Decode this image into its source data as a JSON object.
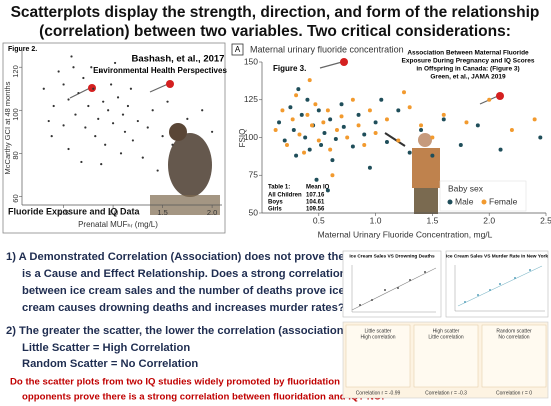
{
  "title": [
    "Scatterplots display the strength, direction, and form of the relationship",
    "(correlation) between two variables.  Two critical considerations:"
  ],
  "left_chart": {
    "type": "scatter",
    "figure_label": "Figure 2.",
    "citation": [
      "Bashash, et al., 2017",
      "Environmental Health Perspectives"
    ],
    "ylabel": "McCarthy GCI at 48 months",
    "xlabel": "Prenatal MUFₕᵣ (mg/L)",
    "caption": "Fluoride Exposure and IQ Data",
    "xlim": [
      0.08,
      2.1
    ],
    "ylim": [
      56,
      128
    ],
    "xticks": [
      0.5,
      {
        "value": 1,
        "label": "1.0"
      },
      1.5,
      {
        "value": 2,
        "label": "2.0"
      }
    ],
    "yticks": [
      60,
      80,
      100,
      120
    ],
    "color": "#333333",
    "x": [
      0.45,
      0.5,
      0.55,
      0.6,
      0.62,
      0.65,
      0.7,
      0.72,
      0.75,
      0.8,
      0.82,
      0.85,
      0.88,
      0.9,
      0.92,
      0.95,
      0.98,
      1.0,
      1.05,
      1.08,
      1.1,
      1.12,
      1.15,
      1.2,
      1.25,
      1.3,
      1.35,
      1.4,
      1.45,
      1.5,
      0.35,
      0.4,
      0.38,
      0.55,
      0.68,
      0.58,
      1.6,
      1.75,
      1.9,
      0.3,
      0.78,
      1.02,
      0.5,
      0.88,
      1.18,
      1.55,
      2.0
    ],
    "y": [
      118,
      112,
      105,
      120,
      98,
      108,
      115,
      92,
      102,
      110,
      88,
      96,
      118,
      104,
      84,
      100,
      112,
      94,
      106,
      80,
      98,
      90,
      102,
      86,
      95,
      78,
      92,
      100,
      72,
      88,
      95,
      102,
      88,
      82,
      76,
      125,
      84,
      96,
      100,
      110,
      120,
      122,
      93,
      75,
      110,
      104,
      90
    ]
  },
  "right_chart": {
    "type": "scatter",
    "panel_label": "A",
    "header": "Maternal urinary fluoride concentration",
    "figure_label": "Figure 3.",
    "title": [
      "Association Between Maternal Fluoride",
      "Exposure During Pregnancy and IQ Scores",
      "in Offspring in Canada: (Figure 3)",
      "Green, et al., JAMA 2019"
    ],
    "ylabel": "FSIQ",
    "xlabel": "Maternal Urinary Fluoride Concentration, mg/L",
    "xlim": [
      0,
      2.5
    ],
    "ylim": [
      50,
      150
    ],
    "xticks": [
      0.5,
      {
        "value": 1,
        "label": "1.0"
      },
      1.5,
      {
        "value": 2,
        "label": "2.0"
      },
      2.5
    ],
    "yticks": [
      50,
      75,
      100,
      125,
      150
    ],
    "legend_title": "Baby sex",
    "series": [
      {
        "name": "Male",
        "color": "#1f4e5a",
        "x": [
          0.15,
          0.2,
          0.25,
          0.28,
          0.3,
          0.35,
          0.38,
          0.4,
          0.42,
          0.45,
          0.5,
          0.52,
          0.55,
          0.6,
          0.62,
          0.65,
          0.7,
          0.72,
          0.8,
          0.85,
          0.9,
          0.95,
          1.0,
          1.1,
          1.2,
          1.3,
          1.4,
          1.5,
          1.6,
          1.75,
          1.9,
          2.1,
          2.45,
          0.32,
          0.48,
          1.05,
          0.58
        ],
        "y": [
          110,
          98,
          120,
          105,
          88,
          115,
          100,
          125,
          92,
          108,
          118,
          95,
          103,
          112,
          85,
          99,
          122,
          107,
          94,
          115,
          102,
          80,
          110,
          97,
          118,
          90,
          105,
          88,
          112,
          95,
          108,
          92,
          100,
          132,
          72,
          125,
          65
        ]
      },
      {
        "name": "Female",
        "color": "#f29a2e",
        "x": [
          0.12,
          0.18,
          0.22,
          0.27,
          0.3,
          0.33,
          0.37,
          0.4,
          0.44,
          0.47,
          0.5,
          0.54,
          0.58,
          0.6,
          0.66,
          0.7,
          0.75,
          0.8,
          0.85,
          0.9,
          0.95,
          1.0,
          1.1,
          1.2,
          1.3,
          1.4,
          1.5,
          1.6,
          1.8,
          2.0,
          2.2,
          2.4,
          0.42,
          0.62,
          1.25
        ],
        "y": [
          105,
          118,
          95,
          112,
          128,
          102,
          90,
          115,
          108,
          122,
          98,
          110,
          118,
          92,
          105,
          114,
          100,
          125,
          108,
          95,
          118,
          103,
          112,
          98,
          120,
          108,
          100,
          115,
          110,
          125,
          105,
          112,
          138,
          75,
          130
        ]
      }
    ],
    "table": {
      "header": [
        "Table 1:",
        "Mean IQ"
      ],
      "rows": [
        [
          "All Children",
          "107.16"
        ],
        [
          "Boys",
          "104.61"
        ],
        [
          "Girls",
          "109.56"
        ]
      ]
    }
  },
  "point1": [
    "1) A Demonstrated Correlation (Association) does not prove there",
    "is a Cause and Effect Relationship.  Does a strong correlation",
    "between ice cream sales and the number of deaths prove ice",
    "cream causes drowning deaths and increases murder rates?  NO!"
  ],
  "point2": [
    "2) The greater the scatter, the lower the correlation (association).",
    "Little Scatter = High  Correlation",
    "Random Scatter = No Correlation"
  ],
  "question": [
    "Do the scatter plots from two IQ studies widely promoted by fluoridation",
    "opponents prove there is a strong correlation between fluoridation and IQ?  NO!"
  ],
  "thumbnails": {
    "ice_cream_titles": [
      "Ice Cream Sales VS Drowning Deaths",
      "Ice Cream Sales VS Murder Rate in New York"
    ],
    "scatter_panels": [
      {
        "label": [
          "Little scatter",
          "High correlation"
        ],
        "caption": "Correlation r = -0.99"
      },
      {
        "label": [
          "High scatter",
          "Little correlation"
        ],
        "caption": "Correlation r = -0.3"
      },
      {
        "label": [
          "Random scatter",
          "No correlation"
        ],
        "caption": "Correlation r = 0"
      }
    ]
  }
}
